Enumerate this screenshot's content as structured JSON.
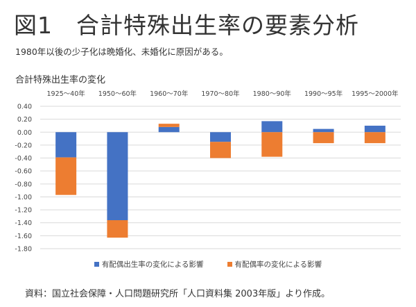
{
  "slide": {
    "title": "図1　合計特殊出生率の要素分析",
    "subtitle": "1980年以後の少子化は晩婚化、未婚化に原因がある。",
    "source": "資料：国立社会保障・人口問題研究所「人口資料集 2003年版」より作成。"
  },
  "chart_data": {
    "type": "bar",
    "stacked": true,
    "title": "合計特殊出生率の変化",
    "categories": [
      "1925〜40年",
      "1950〜60年",
      "1960〜70年",
      "1970〜80年",
      "1980〜90年",
      "1990〜95年",
      "1995〜2000年"
    ],
    "category_axis_position": "top",
    "series": [
      {
        "name": "有配偶出生率の変化による影響",
        "color": "#4472C4",
        "values": [
          -0.39,
          -1.36,
          0.08,
          -0.15,
          0.17,
          0.05,
          0.1
        ]
      },
      {
        "name": "有配偶率の変化による影響",
        "color": "#ED7D31",
        "values": [
          -0.58,
          -0.27,
          0.05,
          -0.25,
          -0.38,
          -0.17,
          -0.17
        ]
      }
    ],
    "ylim": [
      -1.8,
      0.4
    ],
    "yticks": [
      "0.40",
      "0.20",
      "0.00",
      "-0.20",
      "-0.40",
      "-0.60",
      "-0.80",
      "-1.00",
      "-1.20",
      "-1.40",
      "-1.60",
      "-1.80"
    ],
    "grid": true,
    "legend_position": "bottom"
  }
}
